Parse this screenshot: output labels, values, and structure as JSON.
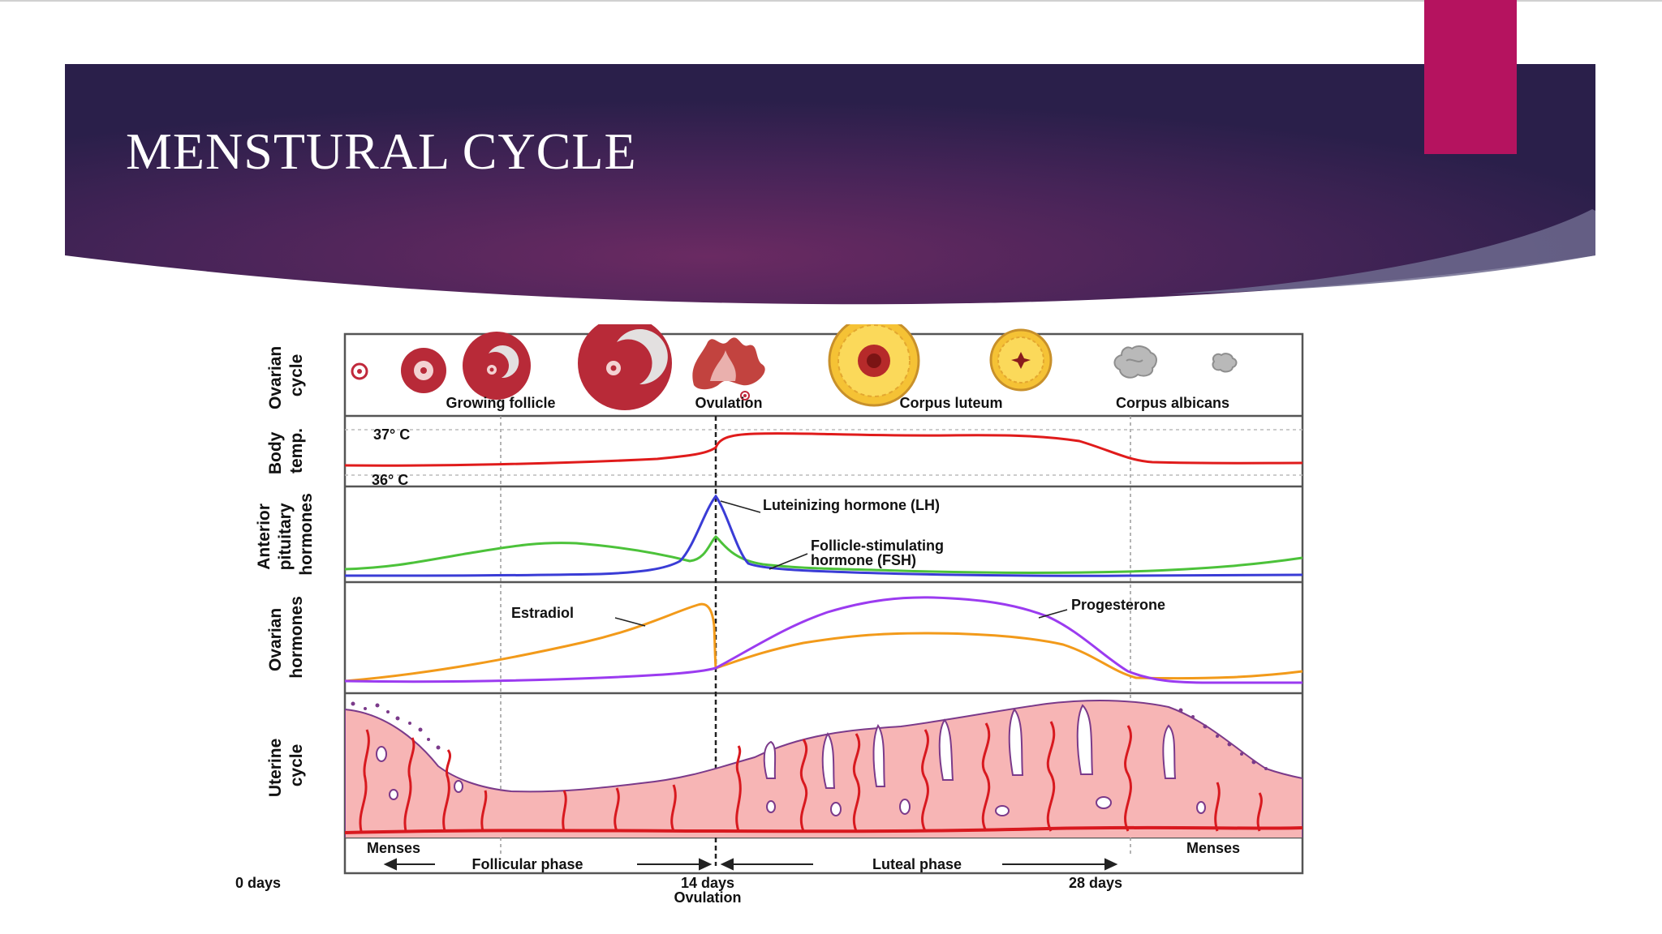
{
  "slide": {
    "title": "MENSTURAL CYCLE"
  },
  "colors": {
    "banner_dark": "#2a1f4a",
    "banner_mid": "#6a2a62",
    "accent_tab": "#b5135f",
    "curve_wedge": "#6d6a8e",
    "lh": "#3a3cd6",
    "fsh": "#4cc23a",
    "estradiol": "#f29a1a",
    "progesterone": "#9b3bf0",
    "temperature": "#e01b1b",
    "endometrium": "#f7b5b5",
    "vessel": "#d8191f"
  },
  "diagram": {
    "row_labels": {
      "ovarian_cycle": [
        "Ovarian",
        "cycle"
      ],
      "body_temp": [
        "Body",
        "temp."
      ],
      "anterior_pituitary": [
        "Anterior",
        "pituitary",
        "hormones"
      ],
      "ovarian_hormones": [
        "Ovarian",
        "hormones"
      ],
      "uterine_cycle": [
        "Uterine",
        "cycle"
      ]
    },
    "ovarian_labels": {
      "growing_follicle": "Growing follicle",
      "ovulation": "Ovulation",
      "corpus_luteum": "Corpus luteum",
      "corpus_albicans": "Corpus albicans"
    },
    "temps": {
      "high": "37° C",
      "low": "36° C"
    },
    "hormone_labels": {
      "lh": "Luteinizing hormone (LH)",
      "fsh_line1": "Follicle-stimulating",
      "fsh_line2": "hormone (FSH)",
      "estradiol": "Estradiol",
      "progesterone": "Progesterone"
    },
    "phases": {
      "menses_left": "Menses",
      "menses_right": "Menses",
      "follicular": "Follicular phase",
      "luteal": "Luteal phase"
    },
    "days": {
      "start": "0 days",
      "mid": "14 days",
      "mid_sub": "Ovulation",
      "end": "28 days"
    }
  }
}
